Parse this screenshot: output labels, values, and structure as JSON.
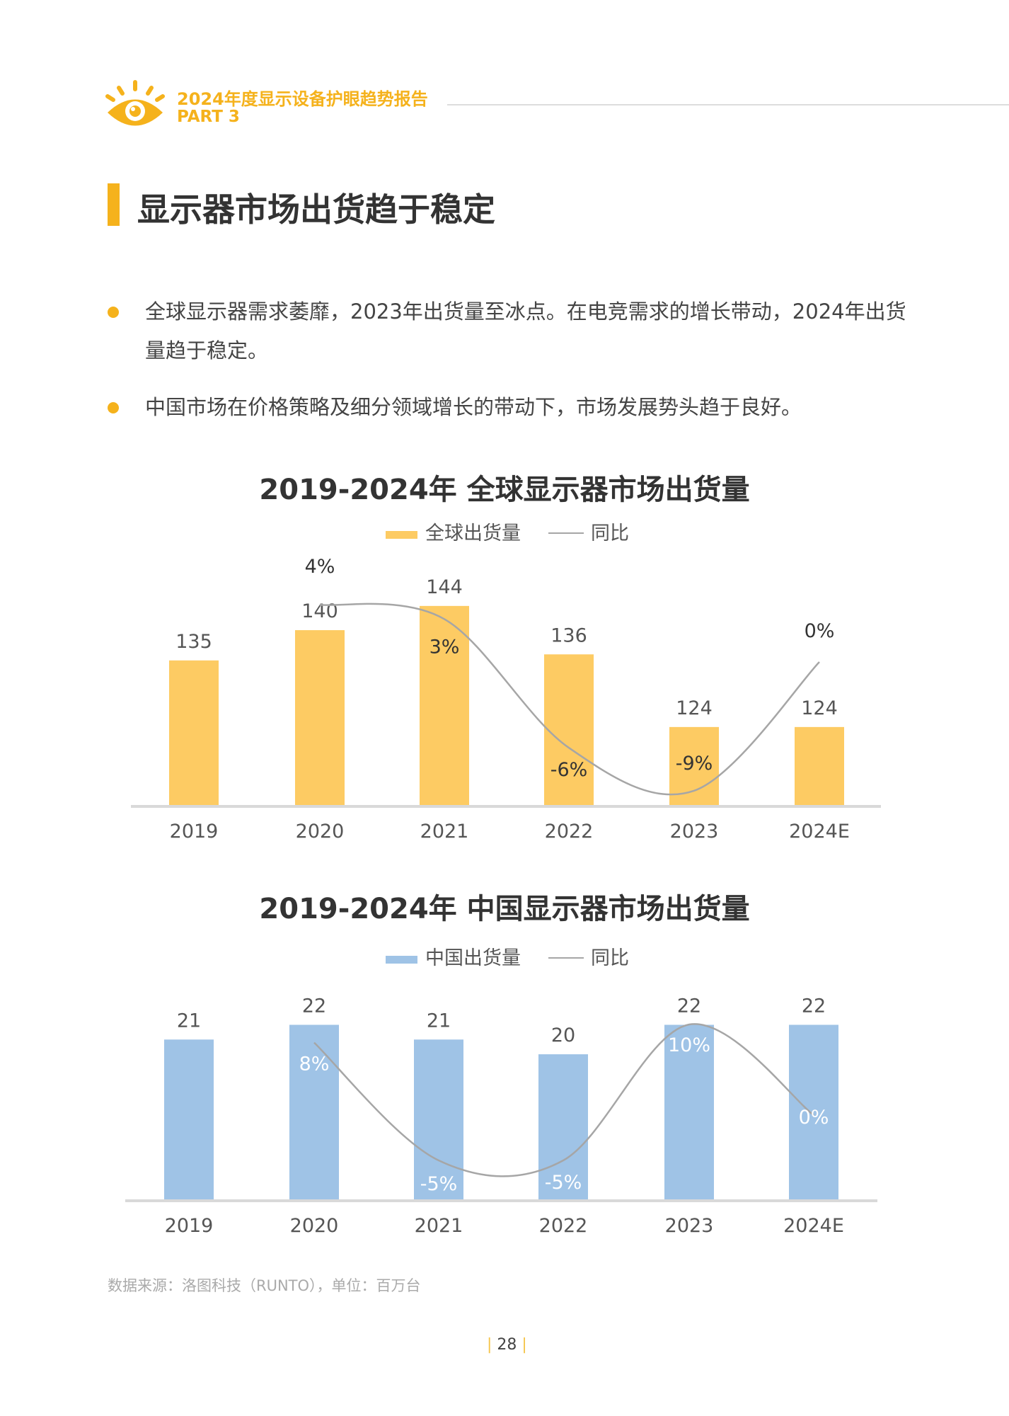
{
  "header": {
    "report_title": "2024年度显示设备护眼趋势报告",
    "part": "PART 3",
    "logo_icon": "eye-icon",
    "accent": "#f5b21c"
  },
  "section": {
    "title": "显示器市场出货趋于稳定"
  },
  "bullets": [
    "全球显示器需求萎靡，2023年出货量至冰点。在电竞需求的增长带动，2024年出货量趋于稳定。",
    "中国市场在价格策略及细分领域增长的带动下，市场发展势头趋于良好。"
  ],
  "chart_data": [
    {
      "type": "bar",
      "title": "2019-2024年 全球显示器市场出货量",
      "categories": [
        "2019",
        "2020",
        "2021",
        "2022",
        "2023",
        "2024E"
      ],
      "series": [
        {
          "name": "全球出货量",
          "type": "bar",
          "color": "#fdcb63",
          "values": [
            135,
            140,
            144,
            136,
            124,
            124
          ]
        },
        {
          "name": "同比",
          "type": "line",
          "color": "#a6a6a6",
          "values": [
            null,
            4,
            3,
            -6,
            -9,
            0
          ],
          "labels": [
            "",
            "4%",
            "3%",
            "-6%",
            "-9%",
            "0%"
          ]
        }
      ],
      "grid": false,
      "legend": "top"
    },
    {
      "type": "bar",
      "title": "2019-2024年 中国显示器市场出货量",
      "categories": [
        "2019",
        "2020",
        "2021",
        "2022",
        "2023",
        "2024E"
      ],
      "series": [
        {
          "name": "中国出货量",
          "type": "bar",
          "color": "#9fc3e6",
          "values": [
            21,
            22,
            21,
            20,
            22,
            22
          ]
        },
        {
          "name": "同比",
          "type": "line",
          "color": "#a6a6a6",
          "values": [
            null,
            8,
            -5,
            -5,
            10,
            0
          ],
          "labels": [
            "",
            "8%",
            "-5%",
            "-5%",
            "10%",
            "0%"
          ]
        }
      ],
      "grid": false,
      "legend": "top"
    }
  ],
  "footer": {
    "source": "数据来源：洛图科技（RUNTO），单位：百万台",
    "page": "28"
  }
}
